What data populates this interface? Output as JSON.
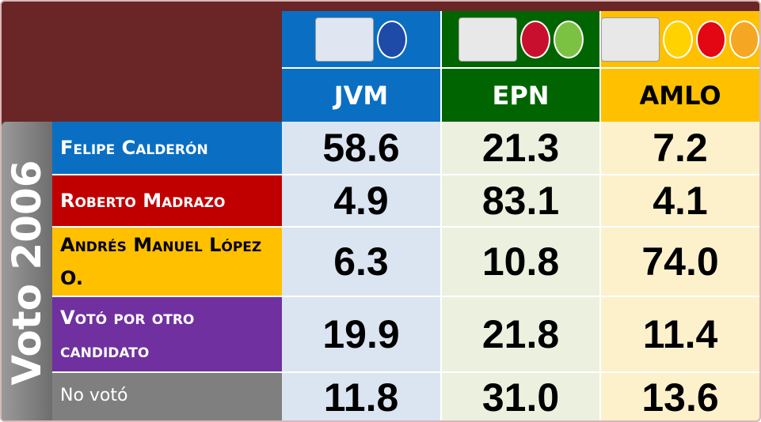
{
  "side_label": "Voto 2006",
  "table": {
    "columns": [
      "JVM",
      "EPN",
      "AMLO"
    ],
    "rows": [
      {
        "label": "Felipe Calderón",
        "cells": [
          "58.6",
          "21.3",
          "7.2"
        ]
      },
      {
        "label": "Roberto Madrazo",
        "cells": [
          "4.9",
          "83.1",
          "4.1"
        ]
      },
      {
        "label": "Andrés Manuel López O.",
        "cells": [
          "6.3",
          "10.8",
          "74.0"
        ]
      },
      {
        "label": "Votó por otro candidato",
        "cells": [
          "19.9",
          "21.8",
          "11.4"
        ]
      },
      {
        "label": "No votó",
        "cells": [
          "11.8",
          "31.0",
          "13.6"
        ]
      }
    ]
  }
}
